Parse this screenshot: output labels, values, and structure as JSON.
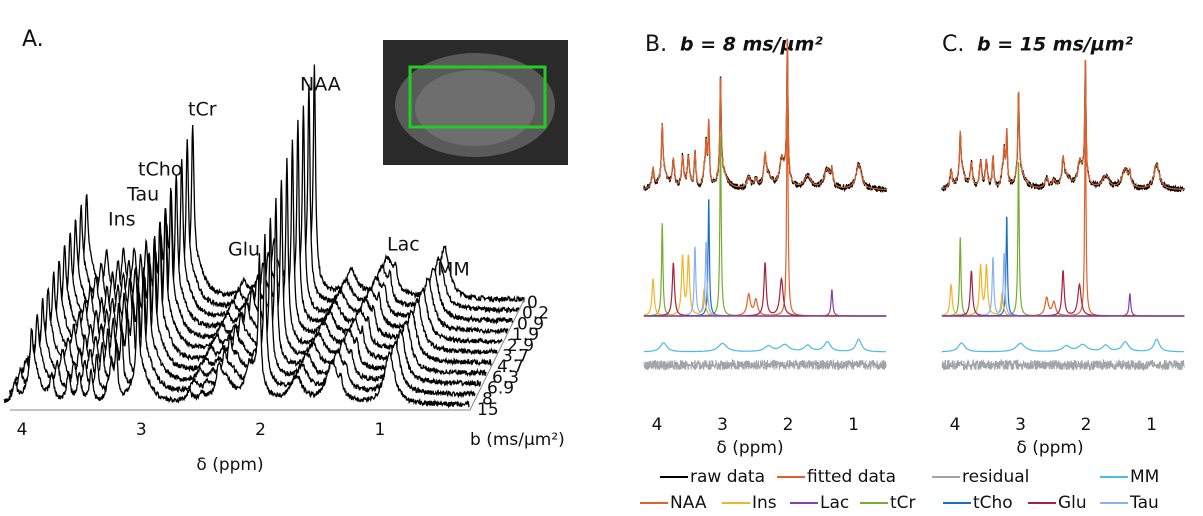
{
  "panel_a": {
    "label": "A.",
    "peak_labels": [
      "tCr",
      "NAA",
      "tCho",
      "Tau",
      "Ins",
      "Glu",
      "Lac",
      "MM"
    ],
    "x_axis": {
      "ticks": [
        4,
        3,
        2,
        1
      ],
      "label": "δ (ppm)"
    },
    "b_axis": {
      "ticks": [
        0,
        0.2,
        0.9,
        1.9,
        2.9,
        3.7,
        4.7,
        6.3,
        6.9,
        8,
        15
      ],
      "label": "b (ms/µm²)"
    }
  },
  "panel_b": {
    "label": "B.",
    "title": "b = 8 ms/µm²",
    "x_axis": {
      "ticks": [
        4,
        3,
        2,
        1
      ],
      "label": "δ (ppm)"
    }
  },
  "panel_c": {
    "label": "C.",
    "title": "b = 15 ms/µm²",
    "x_axis": {
      "ticks": [
        4,
        3,
        2,
        1
      ],
      "label": "δ (ppm)"
    }
  },
  "legend": [
    {
      "name": "raw data",
      "color": "#000000"
    },
    {
      "name": "fitted data",
      "color": "#e0622a"
    },
    {
      "name": "residual",
      "color": "#a0a4a8"
    },
    {
      "name": "MM",
      "color": "#4bbde0"
    },
    {
      "name": "NAA",
      "color": "#e0622a"
    },
    {
      "name": "Ins",
      "color": "#f0b429"
    },
    {
      "name": "Lac",
      "color": "#8a3fa8"
    },
    {
      "name": "tCr",
      "color": "#77ac30"
    },
    {
      "name": "tCho",
      "color": "#1a6fc4"
    },
    {
      "name": "Glu",
      "color": "#a8203e"
    },
    {
      "name": "Tau",
      "color": "#8ab0f0"
    }
  ]
}
